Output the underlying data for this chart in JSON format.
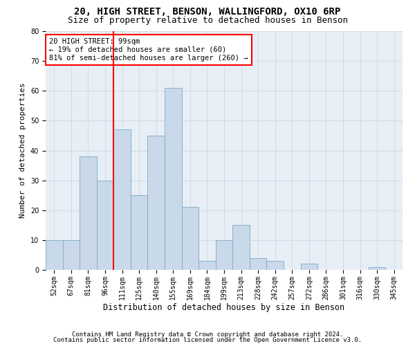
{
  "title1": "20, HIGH STREET, BENSON, WALLINGFORD, OX10 6RP",
  "title2": "Size of property relative to detached houses in Benson",
  "xlabel": "Distribution of detached houses by size in Benson",
  "ylabel": "Number of detached properties",
  "categories": [
    "52sqm",
    "67sqm",
    "81sqm",
    "96sqm",
    "111sqm",
    "125sqm",
    "140sqm",
    "155sqm",
    "169sqm",
    "184sqm",
    "199sqm",
    "213sqm",
    "228sqm",
    "242sqm",
    "257sqm",
    "272sqm",
    "286sqm",
    "301sqm",
    "316sqm",
    "330sqm",
    "345sqm"
  ],
  "values": [
    10,
    10,
    38,
    30,
    47,
    25,
    45,
    61,
    21,
    3,
    10,
    15,
    4,
    3,
    0,
    2,
    0,
    0,
    0,
    1,
    0
  ],
  "bar_color": "#c9d9ea",
  "bar_edgecolor": "#7aaac8",
  "annotation_line1": "20 HIGH STREET: 99sqm",
  "annotation_line2": "← 19% of detached houses are smaller (60)",
  "annotation_line3": "81% of semi-detached houses are larger (260) →",
  "annotation_box_edgecolor": "red",
  "vline_color": "red",
  "grid_color": "#c8d4e0",
  "background_color": "#e8eef5",
  "ylim": [
    0,
    80
  ],
  "yticks": [
    0,
    10,
    20,
    30,
    40,
    50,
    60,
    70,
    80
  ],
  "footer1": "Contains HM Land Registry data © Crown copyright and database right 2024.",
  "footer2": "Contains public sector information licensed under the Open Government Licence v3.0.",
  "title1_fontsize": 10,
  "title2_fontsize": 9,
  "xlabel_fontsize": 8.5,
  "ylabel_fontsize": 8,
  "tick_fontsize": 7,
  "annotation_fontsize": 7.5,
  "footer_fontsize": 6.5,
  "vline_bar_index": 3
}
